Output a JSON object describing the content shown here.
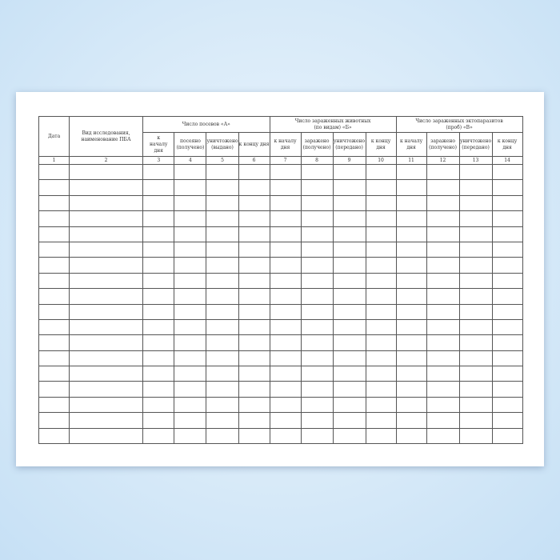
{
  "headers": {
    "date": "Дата",
    "kind": "Вид исследования, наименование ПБА",
    "groupA": "Число посевов «А»",
    "groupB": "Число зараженных животных (по видам) «Б»",
    "groupV": "Число зараженных эктопаразитов (проб) «В»",
    "a": [
      "к началу дня",
      "посеяно (получено)",
      "уничтожено (выдано)",
      "к концу дня"
    ],
    "b": [
      "к началу дня",
      "заражено (получено)",
      "уничтожено (передано)",
      "к концу дня"
    ],
    "v": [
      "к началу дня",
      "заражено (получено)",
      "уничтожено (передано)",
      "к концу дня"
    ]
  },
  "column_numbers": [
    "1",
    "2",
    "3",
    "4",
    "5",
    "6",
    "7",
    "8",
    "9",
    "10",
    "11",
    "12",
    "13",
    "14"
  ],
  "empty_rows": 18
}
